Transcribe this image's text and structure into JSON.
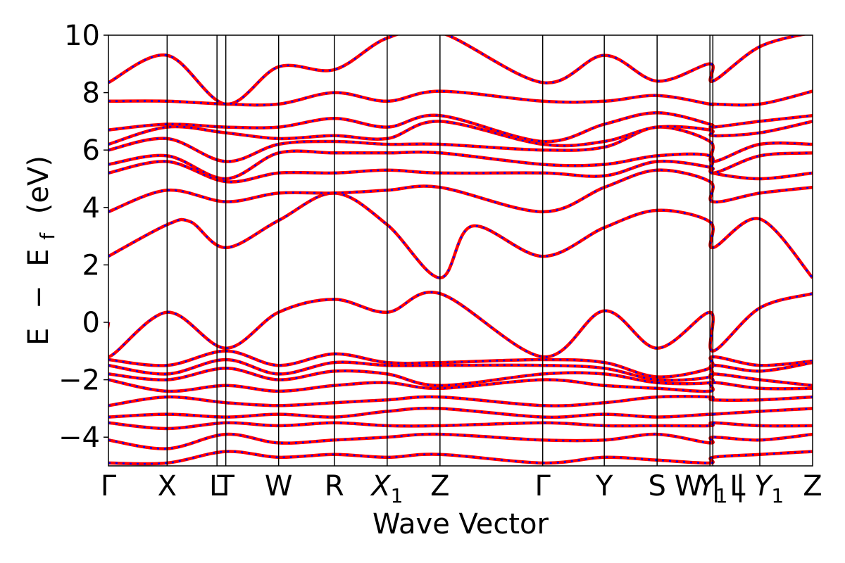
{
  "chart_data": {
    "type": "line",
    "title": "",
    "xlabel": "Wave Vector",
    "ylabel_parts": [
      "E",
      "−",
      "E",
      "f",
      "(eV)"
    ],
    "ylim": [
      -5,
      10
    ],
    "yticks": [
      {
        "value": -4,
        "label": "−4"
      },
      {
        "value": -2,
        "label": "−2"
      },
      {
        "value": 0,
        "label": "0"
      },
      {
        "value": 2,
        "label": "2"
      },
      {
        "value": 4,
        "label": "4"
      },
      {
        "value": 6,
        "label": "6"
      },
      {
        "value": 8,
        "label": "8"
      },
      {
        "value": 10,
        "label": "10"
      }
    ],
    "kpath_range": [
      0,
      12.0
    ],
    "kpoints": [
      {
        "label": "Γ",
        "sub": "",
        "x": 0.0
      },
      {
        "label": "X",
        "sub": "",
        "x": 1.0
      },
      {
        "label": "L",
        "sub": "",
        "x": 1.85
      },
      {
        "label": "T",
        "sub": "",
        "x": 2.0
      },
      {
        "label": "W",
        "sub": "",
        "x": 2.9
      },
      {
        "label": "R",
        "sub": "",
        "x": 3.85
      },
      {
        "label": "X",
        "sub": "1",
        "x": 4.75
      },
      {
        "label": "Z",
        "sub": "",
        "x": 5.65
      },
      {
        "label": "Γ",
        "sub": "",
        "x": 7.4
      },
      {
        "label": "Y",
        "sub": "",
        "x": 8.45
      },
      {
        "label": "S",
        "sub": "",
        "x": 9.35
      },
      {
        "label": "W | L",
        "sub": "",
        "x": 10.25
      },
      {
        "label": "Y",
        "sub": "1",
        "x": 10.3
      },
      {
        "label": "| Y",
        "sub": "1",
        "x": 11.1
      },
      {
        "label": "Z",
        "sub": "",
        "x": 12.0
      }
    ],
    "series": [
      {
        "name": "",
        "color": "#ff0000",
        "style": "solid"
      },
      {
        "name": "",
        "color": "#0000ff",
        "style": "dashed"
      }
    ],
    "bands": [
      [
        [
          0,
          2.3
        ],
        [
          1,
          3.4
        ],
        [
          1.4,
          3.5
        ],
        [
          2,
          2.6
        ],
        [
          2.9,
          3.55
        ],
        [
          3.85,
          4.5
        ],
        [
          4.75,
          3.4
        ],
        [
          5.65,
          1.55
        ],
        [
          6.2,
          3.35
        ],
        [
          7.4,
          2.3
        ],
        [
          8.45,
          3.3
        ],
        [
          9.35,
          3.9
        ],
        [
          10.25,
          3.5
        ],
        [
          10.3,
          2.6
        ],
        [
          11.1,
          3.6
        ],
        [
          12,
          1.55
        ]
      ],
      [
        [
          0,
          3.85
        ],
        [
          1,
          4.6
        ],
        [
          2,
          4.2
        ],
        [
          2.9,
          4.5
        ],
        [
          3.85,
          4.5
        ],
        [
          4.75,
          4.6
        ],
        [
          5.65,
          4.7
        ],
        [
          7.4,
          3.85
        ],
        [
          8.45,
          4.7
        ],
        [
          9.35,
          5.3
        ],
        [
          10.25,
          4.9
        ],
        [
          10.3,
          4.2
        ],
        [
          11.1,
          4.5
        ],
        [
          12,
          4.7
        ]
      ],
      [
        [
          0,
          5.2
        ],
        [
          1,
          5.6
        ],
        [
          2,
          4.9
        ],
        [
          2.9,
          5.2
        ],
        [
          3.85,
          5.2
        ],
        [
          4.75,
          5.3
        ],
        [
          5.65,
          5.2
        ],
        [
          7.4,
          5.2
        ],
        [
          8.45,
          5.1
        ],
        [
          9.35,
          5.6
        ],
        [
          10.25,
          5.4
        ],
        [
          10.3,
          5.2
        ],
        [
          11.1,
          5.0
        ],
        [
          12,
          5.2
        ]
      ],
      [
        [
          0,
          5.5
        ],
        [
          1,
          5.8
        ],
        [
          2,
          5.0
        ],
        [
          2.9,
          5.9
        ],
        [
          3.85,
          5.9
        ],
        [
          4.75,
          5.9
        ],
        [
          5.65,
          5.9
        ],
        [
          7.4,
          5.5
        ],
        [
          8.45,
          5.5
        ],
        [
          9.35,
          5.8
        ],
        [
          10.25,
          5.8
        ],
        [
          10.3,
          5.2
        ],
        [
          11.1,
          5.8
        ],
        [
          12,
          5.9
        ]
      ],
      [
        [
          0,
          6.0
        ],
        [
          1,
          6.4
        ],
        [
          2,
          5.6
        ],
        [
          2.9,
          6.2
        ],
        [
          3.85,
          6.3
        ],
        [
          4.75,
          6.2
        ],
        [
          5.65,
          6.2
        ],
        [
          7.4,
          6.0
        ],
        [
          8.45,
          6.1
        ],
        [
          9.35,
          6.8
        ],
        [
          10.25,
          6.3
        ],
        [
          10.3,
          5.6
        ],
        [
          11.1,
          6.2
        ],
        [
          12,
          6.2
        ]
      ],
      [
        [
          0,
          6.2
        ],
        [
          1,
          6.8
        ],
        [
          2,
          6.6
        ],
        [
          2.9,
          6.4
        ],
        [
          3.85,
          6.5
        ],
        [
          4.75,
          6.4
        ],
        [
          5.65,
          7.0
        ],
        [
          7.4,
          6.2
        ],
        [
          8.45,
          6.3
        ],
        [
          9.35,
          6.8
        ],
        [
          10.25,
          6.7
        ],
        [
          10.3,
          6.5
        ],
        [
          11.1,
          6.6
        ],
        [
          12,
          7.0
        ]
      ],
      [
        [
          0,
          6.7
        ],
        [
          1,
          6.9
        ],
        [
          2,
          6.8
        ],
        [
          2.9,
          6.8
        ],
        [
          3.85,
          7.1
        ],
        [
          4.75,
          6.8
        ],
        [
          5.65,
          7.2
        ],
        [
          7.4,
          6.3
        ],
        [
          8.45,
          6.9
        ],
        [
          9.35,
          7.3
        ],
        [
          10.25,
          6.9
        ],
        [
          10.3,
          6.8
        ],
        [
          11.1,
          7.0
        ],
        [
          12,
          7.2
        ]
      ],
      [
        [
          0,
          7.7
        ],
        [
          1,
          7.7
        ],
        [
          2,
          7.6
        ],
        [
          2.9,
          7.6
        ],
        [
          3.85,
          8.0
        ],
        [
          4.75,
          7.7
        ],
        [
          5.65,
          8.05
        ],
        [
          7.4,
          7.7
        ],
        [
          8.45,
          7.7
        ],
        [
          9.35,
          7.9
        ],
        [
          10.25,
          7.6
        ],
        [
          10.3,
          7.6
        ],
        [
          11.1,
          7.6
        ],
        [
          12,
          8.05
        ]
      ],
      [
        [
          0,
          8.35
        ],
        [
          1,
          9.3
        ],
        [
          2,
          7.6
        ],
        [
          2.9,
          8.9
        ],
        [
          3.85,
          8.8
        ],
        [
          4.75,
          9.9
        ],
        [
          5.65,
          10.1
        ],
        [
          7.4,
          8.35
        ],
        [
          8.45,
          9.3
        ],
        [
          9.35,
          8.4
        ],
        [
          10.25,
          9.0
        ],
        [
          10.3,
          8.4
        ],
        [
          11.1,
          9.6
        ],
        [
          12,
          10.1
        ]
      ],
      [
        [
          0,
          0.0
        ],
        [
          0.0,
          -1.2
        ],
        [
          1,
          0.35
        ],
        [
          2,
          -0.9
        ],
        [
          2.9,
          0.35
        ],
        [
          3.85,
          0.8
        ],
        [
          4.75,
          0.35
        ],
        [
          5.65,
          1.0
        ],
        [
          7.4,
          -1.2
        ],
        [
          8.45,
          0.4
        ],
        [
          9.35,
          -0.9
        ],
        [
          10.25,
          0.35
        ],
        [
          10.3,
          -1.0
        ],
        [
          11.1,
          0.5
        ],
        [
          12,
          1.0
        ]
      ],
      [
        [
          0,
          -1.3
        ],
        [
          1,
          -1.5
        ],
        [
          2,
          -1.0
        ],
        [
          2.9,
          -1.5
        ],
        [
          3.85,
          -1.1
        ],
        [
          4.75,
          -1.4
        ],
        [
          5.65,
          -1.4
        ],
        [
          7.4,
          -1.3
        ],
        [
          8.45,
          -1.4
        ],
        [
          9.35,
          -1.9
        ],
        [
          10.25,
          -1.6
        ],
        [
          10.3,
          -1.2
        ],
        [
          11.1,
          -1.5
        ],
        [
          12,
          -1.35
        ]
      ],
      [
        [
          0,
          -1.5
        ],
        [
          1,
          -1.8
        ],
        [
          2,
          -1.3
        ],
        [
          2.9,
          -1.8
        ],
        [
          3.85,
          -1.4
        ],
        [
          4.75,
          -1.5
        ],
        [
          5.65,
          -1.5
        ],
        [
          7.4,
          -1.5
        ],
        [
          8.45,
          -1.6
        ],
        [
          9.35,
          -2.0
        ],
        [
          10.25,
          -1.9
        ],
        [
          10.3,
          -1.5
        ],
        [
          11.1,
          -1.7
        ],
        [
          12,
          -1.4
        ]
      ],
      [
        [
          0,
          -1.8
        ],
        [
          1,
          -2.0
        ],
        [
          2,
          -1.6
        ],
        [
          2.9,
          -2.0
        ],
        [
          3.85,
          -1.7
        ],
        [
          4.75,
          -1.8
        ],
        [
          5.65,
          -2.2
        ],
        [
          7.4,
          -1.8
        ],
        [
          8.45,
          -1.8
        ],
        [
          9.35,
          -2.1
        ],
        [
          10.25,
          -2.1
        ],
        [
          10.3,
          -1.8
        ],
        [
          11.1,
          -2.0
        ],
        [
          12,
          -2.2
        ]
      ],
      [
        [
          0,
          -2.0
        ],
        [
          1,
          -2.4
        ],
        [
          2,
          -2.2
        ],
        [
          2.9,
          -2.4
        ],
        [
          3.85,
          -2.2
        ],
        [
          4.75,
          -2.1
        ],
        [
          5.65,
          -2.3
        ],
        [
          7.4,
          -2.0
        ],
        [
          8.45,
          -2.2
        ],
        [
          9.35,
          -2.3
        ],
        [
          10.25,
          -2.4
        ],
        [
          10.3,
          -2.1
        ],
        [
          11.1,
          -2.3
        ],
        [
          12,
          -2.3
        ]
      ],
      [
        [
          0,
          -2.9
        ],
        [
          1,
          -2.6
        ],
        [
          2,
          -2.8
        ],
        [
          2.9,
          -2.9
        ],
        [
          3.85,
          -2.8
        ],
        [
          4.75,
          -2.7
        ],
        [
          5.65,
          -2.6
        ],
        [
          7.4,
          -2.9
        ],
        [
          8.45,
          -2.8
        ],
        [
          9.35,
          -2.6
        ],
        [
          10.25,
          -2.6
        ],
        [
          10.3,
          -2.7
        ],
        [
          11.1,
          -2.7
        ],
        [
          12,
          -2.6
        ]
      ],
      [
        [
          0,
          -3.3
        ],
        [
          1,
          -3.2
        ],
        [
          2,
          -3.3
        ],
        [
          2.9,
          -3.2
        ],
        [
          3.85,
          -3.3
        ],
        [
          4.75,
          -3.1
        ],
        [
          5.65,
          -3.0
        ],
        [
          7.4,
          -3.3
        ],
        [
          8.45,
          -3.2
        ],
        [
          9.35,
          -3.3
        ],
        [
          10.25,
          -3.2
        ],
        [
          10.3,
          -3.2
        ],
        [
          11.1,
          -3.1
        ],
        [
          12,
          -3.0
        ]
      ],
      [
        [
          0,
          -3.5
        ],
        [
          1,
          -3.7
        ],
        [
          2,
          -3.5
        ],
        [
          2.9,
          -3.6
        ],
        [
          3.85,
          -3.5
        ],
        [
          4.75,
          -3.6
        ],
        [
          5.65,
          -3.6
        ],
        [
          7.4,
          -3.5
        ],
        [
          8.45,
          -3.6
        ],
        [
          9.35,
          -3.6
        ],
        [
          10.25,
          -3.6
        ],
        [
          10.3,
          -3.5
        ],
        [
          11.1,
          -3.6
        ],
        [
          12,
          -3.6
        ]
      ],
      [
        [
          0,
          -4.1
        ],
        [
          1,
          -4.4
        ],
        [
          2,
          -3.9
        ],
        [
          2.9,
          -4.2
        ],
        [
          3.85,
          -4.1
        ],
        [
          4.75,
          -4.0
        ],
        [
          5.65,
          -3.9
        ],
        [
          7.4,
          -4.1
        ],
        [
          8.45,
          -4.1
        ],
        [
          9.35,
          -3.9
        ],
        [
          10.25,
          -4.2
        ],
        [
          10.3,
          -4.0
        ],
        [
          11.1,
          -4.1
        ],
        [
          12,
          -3.9
        ]
      ],
      [
        [
          0,
          -4.9
        ],
        [
          1,
          -4.9
        ],
        [
          2,
          -4.5
        ],
        [
          2.9,
          -4.7
        ],
        [
          3.85,
          -4.6
        ],
        [
          4.75,
          -4.7
        ],
        [
          5.65,
          -4.6
        ],
        [
          7.4,
          -4.9
        ],
        [
          8.45,
          -4.7
        ],
        [
          9.35,
          -4.8
        ],
        [
          10.25,
          -4.9
        ],
        [
          10.3,
          -4.7
        ],
        [
          11.1,
          -4.6
        ],
        [
          12,
          -4.5
        ]
      ]
    ]
  }
}
